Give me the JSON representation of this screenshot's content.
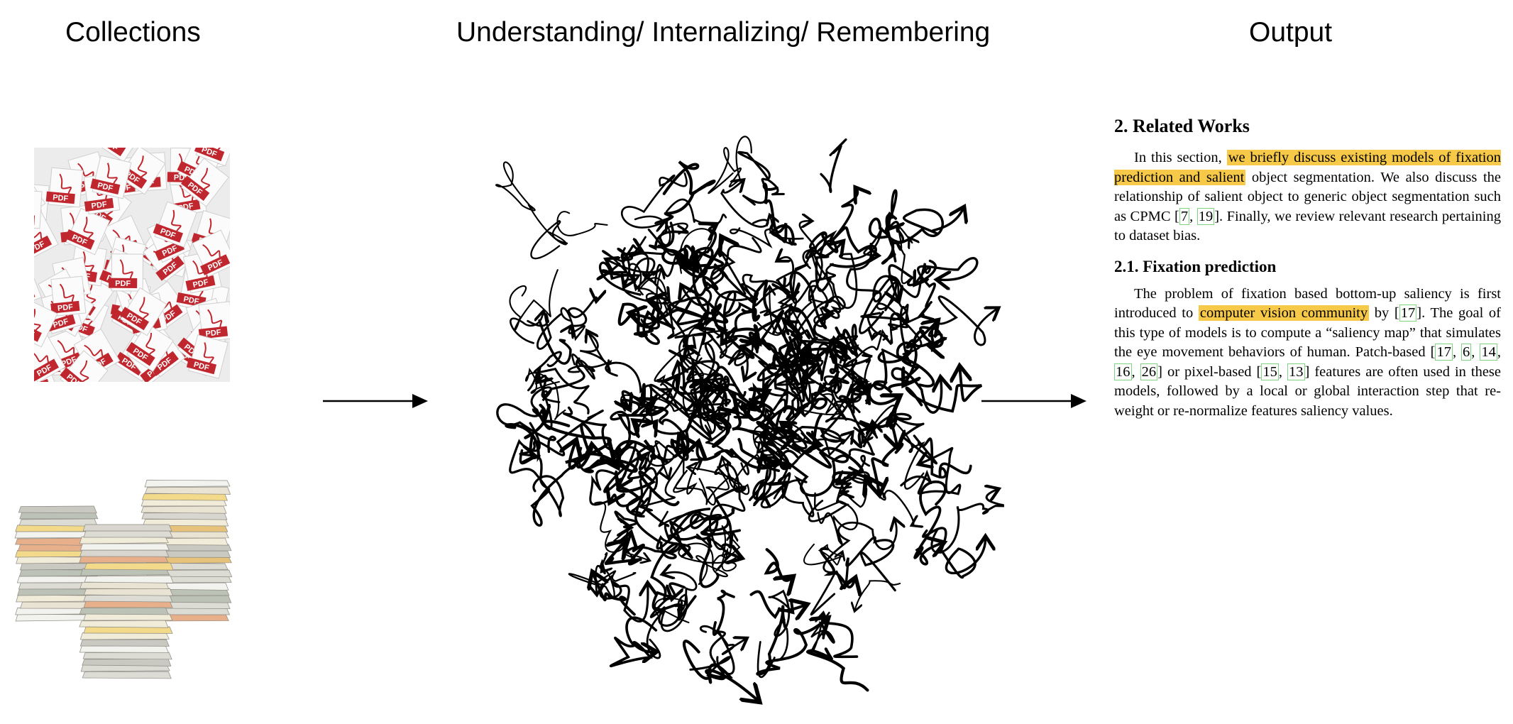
{
  "headers": {
    "collections": "Collections",
    "understanding": "Understanding/ Internalizing/ Remembering",
    "output": "Output"
  },
  "images": {
    "pdf_tile_label": "PDF"
  },
  "paper": {
    "section_title": "2. Related Works",
    "para1": {
      "t1": "In this section, ",
      "hl1": "we briefly discuss existing models of fixation prediction and salient",
      "t2": " object segmentation. We also discuss the relationship of salient object to generic object segmentation such as CPMC [",
      "c1": "7",
      "t3": ", ",
      "c2": "19",
      "t4": "]. Finally, we review relevant research pertaining to dataset bias."
    },
    "subsection_title": "2.1. Fixation prediction",
    "para2": {
      "t1": "The problem of fixation based bottom-up saliency is first introduced to ",
      "hl1": "computer vision community",
      "t2": " by [",
      "c1": "17",
      "t3": "]. The goal of this type of models is to compute a “saliency map” that simulates the eye movement behaviors of human. Patch-based [",
      "c2": "17",
      "t4": ", ",
      "c3": "6",
      "t5": ", ",
      "c4": "14",
      "t6": ", ",
      "c5": "16",
      "t7": ", ",
      "c6": "26",
      "t8": "] or pixel-based [",
      "c7": "15",
      "t9": ", ",
      "c8": "13",
      "t10": "] features are often used in these models, followed by a local or global interaction step that re-weight or re-normalize features saliency values."
    }
  },
  "colors": {
    "highlight": "#f7c948",
    "citation_box": "#7fd47f",
    "pdf_red": "#c0262d"
  }
}
